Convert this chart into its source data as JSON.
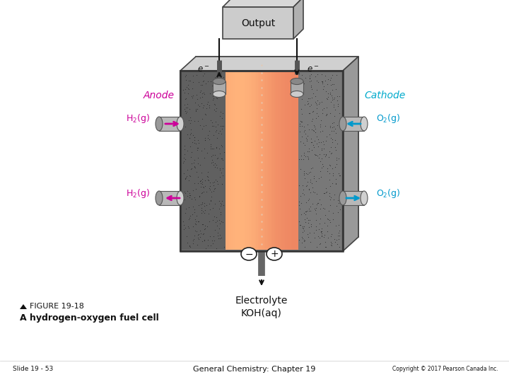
{
  "slide_text": "Slide 19 - 53",
  "center_text": "General Chemistry: Chapter 19",
  "copyright_text": "Copyright © 2017 Pearson Canada Inc.",
  "bg_color": "#ffffff",
  "anode_color": "#cc0099",
  "cathode_color": "#00aacc",
  "h2_arrow_color": "#cc0099",
  "o2_arrow_color": "#0099cc",
  "figure_label": "FIGURE 19-18",
  "figure_caption": "A hydrogen-oxygen fuel cell"
}
